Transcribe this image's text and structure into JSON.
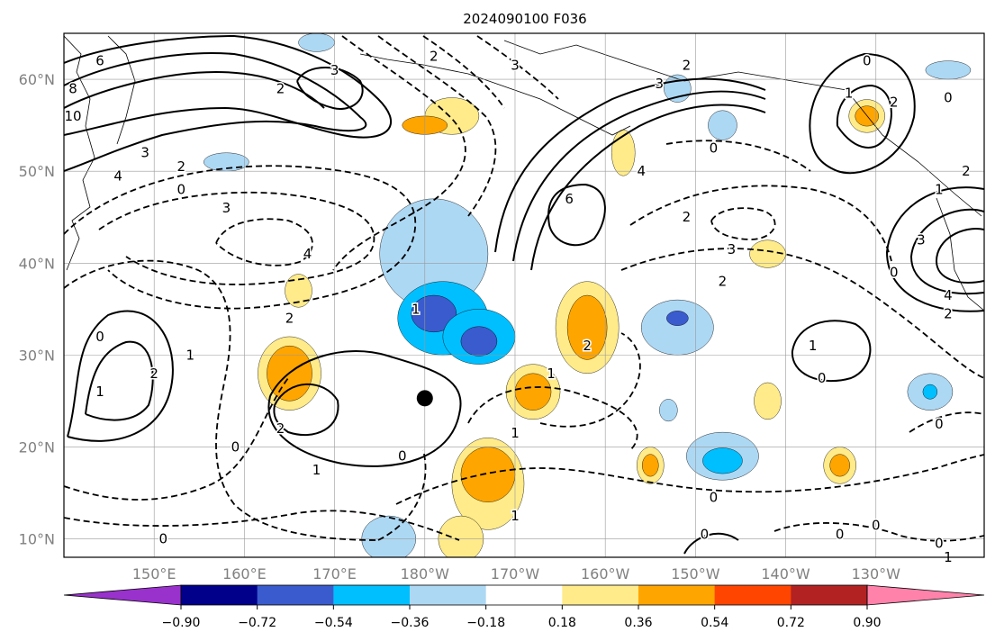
{
  "chart_data": {
    "type": "heatmap",
    "title": "2024090100 F036",
    "map": {
      "lon_range_deg_east": [
        140,
        242
      ],
      "lat_range_deg": [
        8,
        65
      ],
      "grid": true,
      "lon_tick_labels": [
        "150°E",
        "160°E",
        "170°E",
        "180°W",
        "170°W",
        "160°W",
        "150°W",
        "140°W",
        "130°W"
      ],
      "lon_tick_values": [
        150,
        160,
        170,
        180,
        190,
        200,
        210,
        220,
        230
      ],
      "lat_tick_labels": [
        "10°N",
        "20°N",
        "30°N",
        "40°N",
        "50°N",
        "60°N"
      ],
      "lat_tick_values": [
        10,
        20,
        30,
        40,
        50,
        60
      ],
      "marker": {
        "lon": 180.0,
        "lat": 25.3,
        "color": "#000000"
      }
    },
    "colorbar": {
      "orientation": "horizontal",
      "extend": "both",
      "tick_labels": [
        "−0.90",
        "−0.72",
        "−0.54",
        "−0.36",
        "−0.18",
        "0.18",
        "0.36",
        "0.54",
        "0.72",
        "0.90"
      ],
      "boundaries": [
        -0.9,
        -0.72,
        -0.54,
        -0.36,
        -0.18,
        0.18,
        0.36,
        0.54,
        0.72,
        0.9
      ],
      "colors": [
        "#9932cc",
        "#00008b",
        "#3a5bcd",
        "#00bfff",
        "#add8f4",
        "#ffffff",
        "#ffeb8a",
        "#ffa500",
        "#ff4500",
        "#b22222",
        "#ff82ab"
      ]
    },
    "shaded_areas": [
      {
        "lon": 181,
        "lat": 41,
        "rx": 6,
        "ry": 6,
        "value": -0.27
      },
      {
        "lon": 182,
        "lat": 34,
        "rx": 5,
        "ry": 4,
        "value": -0.45
      },
      {
        "lon": 181,
        "lat": 34.5,
        "rx": 2.5,
        "ry": 2,
        "value": -0.63
      },
      {
        "lon": 186,
        "lat": 32,
        "rx": 4,
        "ry": 3,
        "value": -0.45
      },
      {
        "lon": 186,
        "lat": 31.5,
        "rx": 2,
        "ry": 1.6,
        "value": -0.63
      },
      {
        "lon": 208,
        "lat": 33,
        "rx": 4,
        "ry": 3,
        "value": -0.27
      },
      {
        "lon": 208,
        "lat": 34,
        "rx": 1.2,
        "ry": 0.8,
        "value": -0.63
      },
      {
        "lon": 213,
        "lat": 19,
        "rx": 4,
        "ry": 2.6,
        "value": -0.27
      },
      {
        "lon": 213,
        "lat": 18.5,
        "rx": 2.2,
        "ry": 1.4,
        "value": -0.45
      },
      {
        "lon": 236,
        "lat": 26,
        "rx": 2.5,
        "ry": 2,
        "value": -0.27
      },
      {
        "lon": 236,
        "lat": 26,
        "rx": 0.8,
        "ry": 0.8,
        "value": -0.45
      },
      {
        "lon": 176,
        "lat": 10,
        "rx": 3,
        "ry": 2.5,
        "value": -0.27
      },
      {
        "lon": 158,
        "lat": 51,
        "rx": 2.5,
        "ry": 1,
        "value": -0.27
      },
      {
        "lon": 208,
        "lat": 59,
        "rx": 1.5,
        "ry": 1.5,
        "value": -0.27
      },
      {
        "lon": 213,
        "lat": 55,
        "rx": 1.6,
        "ry": 1.6,
        "value": -0.27
      },
      {
        "lon": 168,
        "lat": 64,
        "rx": 2,
        "ry": 1,
        "value": -0.27
      },
      {
        "lon": 238,
        "lat": 61,
        "rx": 2.5,
        "ry": 1,
        "value": -0.27
      },
      {
        "lon": 207,
        "lat": 24,
        "rx": 1,
        "ry": 1.2,
        "value": -0.27
      },
      {
        "lon": 165,
        "lat": 28,
        "rx": 3.5,
        "ry": 4,
        "value": 0.27
      },
      {
        "lon": 165,
        "lat": 28,
        "rx": 2.5,
        "ry": 3,
        "value": 0.45
      },
      {
        "lon": 198,
        "lat": 33,
        "rx": 3.5,
        "ry": 5,
        "value": 0.27
      },
      {
        "lon": 198,
        "lat": 33,
        "rx": 2.2,
        "ry": 3.5,
        "value": 0.45
      },
      {
        "lon": 192,
        "lat": 26,
        "rx": 3,
        "ry": 3,
        "value": 0.27
      },
      {
        "lon": 192,
        "lat": 26,
        "rx": 2,
        "ry": 2,
        "value": 0.45
      },
      {
        "lon": 187,
        "lat": 16,
        "rx": 4,
        "ry": 5,
        "value": 0.27
      },
      {
        "lon": 187,
        "lat": 17,
        "rx": 3,
        "ry": 3,
        "value": 0.45
      },
      {
        "lon": 184,
        "lat": 10,
        "rx": 2.5,
        "ry": 2.5,
        "value": 0.27
      },
      {
        "lon": 183,
        "lat": 56,
        "rx": 3,
        "ry": 2,
        "value": 0.27
      },
      {
        "lon": 180,
        "lat": 55,
        "rx": 2.5,
        "ry": 1,
        "value": 0.45
      },
      {
        "lon": 202,
        "lat": 52,
        "rx": 1.3,
        "ry": 2.5,
        "value": 0.27
      },
      {
        "lon": 218,
        "lat": 25,
        "rx": 1.5,
        "ry": 2,
        "value": 0.27
      },
      {
        "lon": 226,
        "lat": 18,
        "rx": 1.8,
        "ry": 2,
        "value": 0.27
      },
      {
        "lon": 226,
        "lat": 18,
        "rx": 1.1,
        "ry": 1.2,
        "value": 0.45
      },
      {
        "lon": 205,
        "lat": 18,
        "rx": 1.5,
        "ry": 2,
        "value": 0.27
      },
      {
        "lon": 205,
        "lat": 18,
        "rx": 0.9,
        "ry": 1.2,
        "value": 0.45
      },
      {
        "lon": 218,
        "lat": 41,
        "rx": 2,
        "ry": 1.5,
        "value": 0.27
      },
      {
        "lon": 166,
        "lat": 37,
        "rx": 1.5,
        "ry": 1.8,
        "value": 0.27
      },
      {
        "lon": 229,
        "lat": 56,
        "rx": 2,
        "ry": 1.8,
        "value": 0.27
      },
      {
        "lon": 229,
        "lat": 56,
        "rx": 1.3,
        "ry": 1.1,
        "value": 0.45
      }
    ],
    "contour_labels": [
      {
        "lon": 144,
        "lat": 62,
        "text": "6"
      },
      {
        "lon": 141,
        "lat": 59,
        "text": "8"
      },
      {
        "lon": 141,
        "lat": 56,
        "text": "10"
      },
      {
        "lon": 146,
        "lat": 49.5,
        "text": "4"
      },
      {
        "lon": 149,
        "lat": 52,
        "text": "3"
      },
      {
        "lon": 153,
        "lat": 50.5,
        "text": "2"
      },
      {
        "lon": 153,
        "lat": 48,
        "text": "0"
      },
      {
        "lon": 158,
        "lat": 46,
        "text": "3"
      },
      {
        "lon": 167,
        "lat": 41,
        "text": "4"
      },
      {
        "lon": 165,
        "lat": 34,
        "text": "2"
      },
      {
        "lon": 144,
        "lat": 32,
        "text": "0"
      },
      {
        "lon": 144,
        "lat": 26,
        "text": "1"
      },
      {
        "lon": 150,
        "lat": 28,
        "text": "2"
      },
      {
        "lon": 164,
        "lat": 22,
        "text": "2"
      },
      {
        "lon": 159,
        "lat": 20,
        "text": "0"
      },
      {
        "lon": 168,
        "lat": 17.5,
        "text": "1"
      },
      {
        "lon": 177.5,
        "lat": 19,
        "text": "0"
      },
      {
        "lon": 154,
        "lat": 30,
        "text": "1"
      },
      {
        "lon": 151,
        "lat": 10,
        "text": "0"
      },
      {
        "lon": 170,
        "lat": 61,
        "text": "3"
      },
      {
        "lon": 164,
        "lat": 59,
        "text": "2"
      },
      {
        "lon": 181,
        "lat": 62.5,
        "text": "2"
      },
      {
        "lon": 190,
        "lat": 61.5,
        "text": "3"
      },
      {
        "lon": 209,
        "lat": 61.5,
        "text": "2"
      },
      {
        "lon": 206,
        "lat": 59.5,
        "text": "3"
      },
      {
        "lon": 204,
        "lat": 50,
        "text": "4"
      },
      {
        "lon": 196,
        "lat": 47,
        "text": "6"
      },
      {
        "lon": 212,
        "lat": 52.5,
        "text": "0"
      },
      {
        "lon": 209,
        "lat": 45,
        "text": "2"
      },
      {
        "lon": 214,
        "lat": 41.5,
        "text": "3"
      },
      {
        "lon": 213,
        "lat": 38,
        "text": "2"
      },
      {
        "lon": 179,
        "lat": 35,
        "text": "1"
      },
      {
        "lon": 194,
        "lat": 28,
        "text": "1"
      },
      {
        "lon": 198,
        "lat": 31,
        "text": "2"
      },
      {
        "lon": 229,
        "lat": 62,
        "text": "0"
      },
      {
        "lon": 227,
        "lat": 58.5,
        "text": "1"
      },
      {
        "lon": 232,
        "lat": 57.5,
        "text": "2"
      },
      {
        "lon": 238,
        "lat": 58,
        "text": "0"
      },
      {
        "lon": 240,
        "lat": 50,
        "text": "2"
      },
      {
        "lon": 237,
        "lat": 48,
        "text": "1"
      },
      {
        "lon": 235,
        "lat": 42.5,
        "text": "3"
      },
      {
        "lon": 238,
        "lat": 36.5,
        "text": "4"
      },
      {
        "lon": 238,
        "lat": 34.5,
        "text": "2"
      },
      {
        "lon": 232,
        "lat": 39,
        "text": "0"
      },
      {
        "lon": 223,
        "lat": 31,
        "text": "1"
      },
      {
        "lon": 224,
        "lat": 27.5,
        "text": "0"
      },
      {
        "lon": 237,
        "lat": 22.5,
        "text": "0"
      },
      {
        "lon": 212,
        "lat": 14.5,
        "text": "0"
      },
      {
        "lon": 211,
        "lat": 10.5,
        "text": "0"
      },
      {
        "lon": 226,
        "lat": 10.5,
        "text": "0"
      },
      {
        "lon": 230,
        "lat": 11.5,
        "text": "0"
      },
      {
        "lon": 237,
        "lat": 9.5,
        "text": "0"
      },
      {
        "lon": 238,
        "lat": 8,
        "text": "1"
      },
      {
        "lon": 190,
        "lat": 12.5,
        "text": "1"
      },
      {
        "lon": 190,
        "lat": 21.5,
        "text": "1"
      }
    ]
  }
}
